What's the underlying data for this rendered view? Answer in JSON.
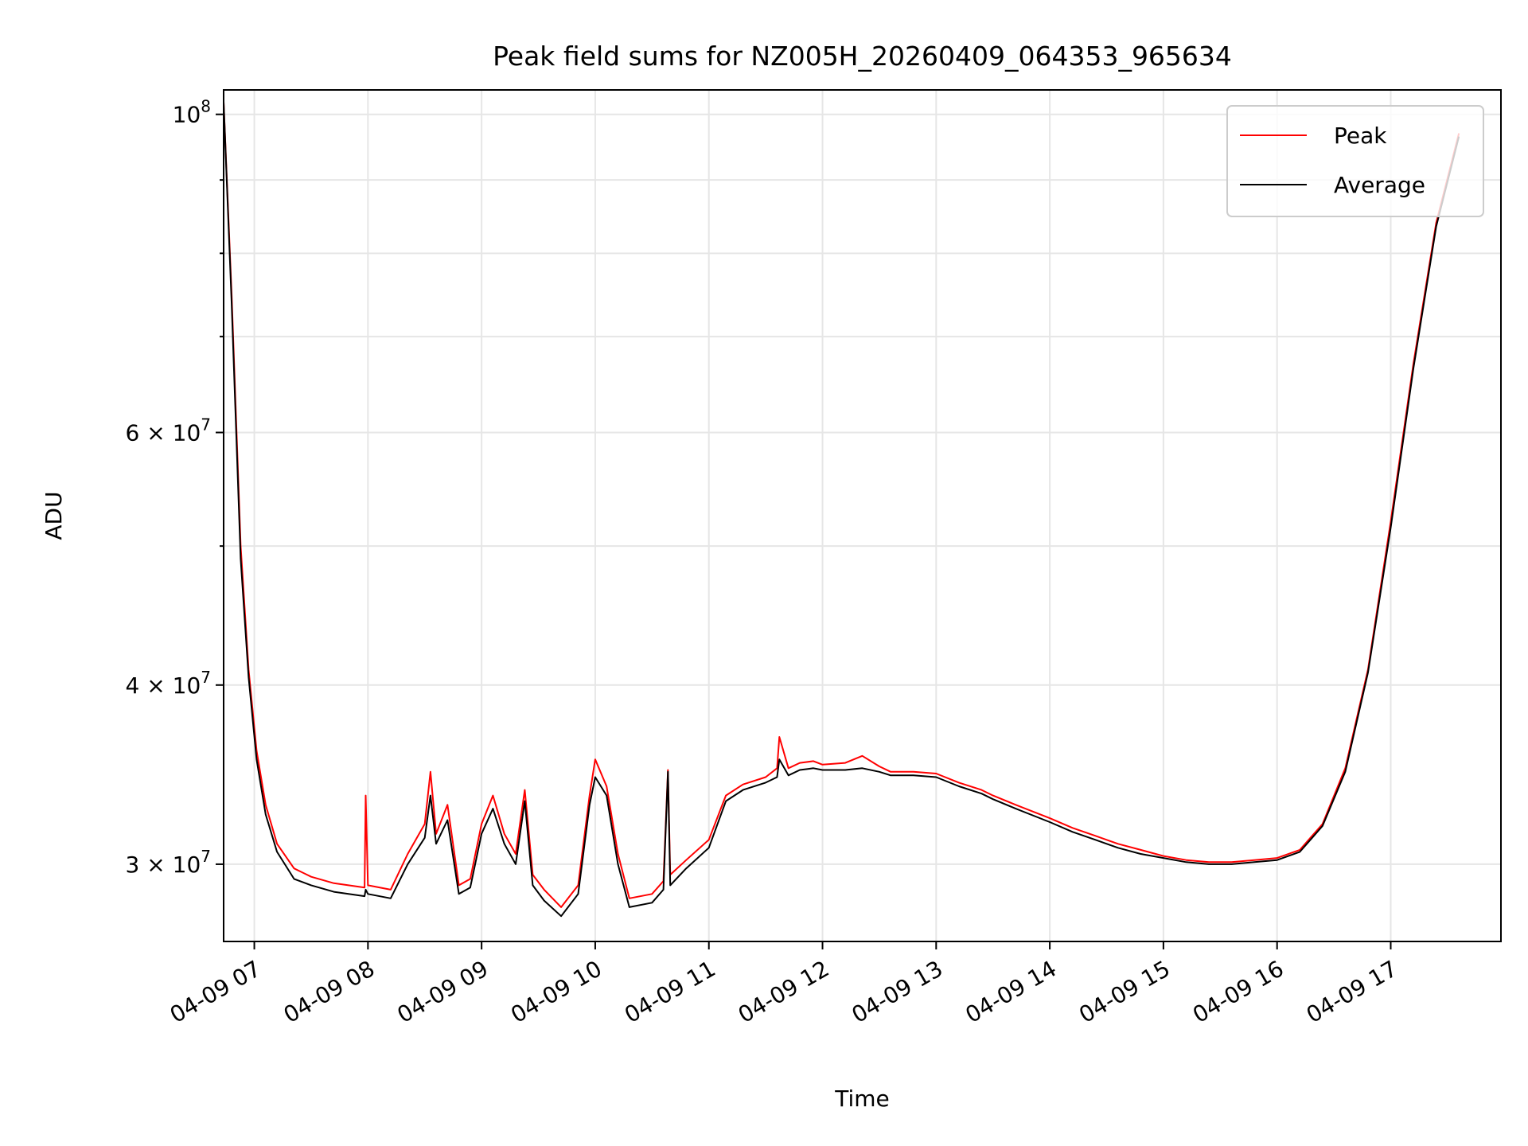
{
  "chart_data": {
    "type": "line",
    "title": "Peak field sums for NZ005H_20260409_064353_965634",
    "xlabel": "Time",
    "ylabel": "ADU",
    "yscale": "log",
    "xlim_hours": [
      6.73,
      17.97
    ],
    "ylim": [
      26500000,
      104000000
    ],
    "grid": true,
    "legend_position": "top-right",
    "x_ticks": [
      {
        "label": "04-09 07",
        "value": 7
      },
      {
        "label": "04-09 08",
        "value": 8
      },
      {
        "label": "04-09 09",
        "value": 9
      },
      {
        "label": "04-09 10",
        "value": 10
      },
      {
        "label": "04-09 11",
        "value": 11
      },
      {
        "label": "04-09 12",
        "value": 12
      },
      {
        "label": "04-09 13",
        "value": 13
      },
      {
        "label": "04-09 14",
        "value": 14
      },
      {
        "label": "04-09 15",
        "value": 15
      },
      {
        "label": "04-09 16",
        "value": 16
      },
      {
        "label": "04-09 17",
        "value": 17
      }
    ],
    "y_ticks": [
      {
        "mantissa": "",
        "exponent": "8",
        "value": 100000000
      },
      {
        "mantissa": "6",
        "exponent": "7",
        "value": 60000000
      },
      {
        "mantissa": "4",
        "exponent": "7",
        "value": 40000000
      },
      {
        "mantissa": "3",
        "exponent": "7",
        "value": 30000000
      }
    ],
    "y_minor_ticks": [
      90000000,
      80000000,
      70000000,
      50000000
    ],
    "series": [
      {
        "name": "Peak",
        "color": "#ff0000",
        "points": [
          [
            6.73,
            102000000
          ],
          [
            6.8,
            75000000
          ],
          [
            6.88,
            50000000
          ],
          [
            6.95,
            41000000
          ],
          [
            7.02,
            36000000
          ],
          [
            7.1,
            33000000
          ],
          [
            7.2,
            31000000
          ],
          [
            7.35,
            29800000
          ],
          [
            7.5,
            29400000
          ],
          [
            7.7,
            29100000
          ],
          [
            7.97,
            28900000
          ],
          [
            7.98,
            33500000
          ],
          [
            8.0,
            29000000
          ],
          [
            8.2,
            28800000
          ],
          [
            8.35,
            30500000
          ],
          [
            8.5,
            32000000
          ],
          [
            8.55,
            34800000
          ],
          [
            8.6,
            31500000
          ],
          [
            8.7,
            33000000
          ],
          [
            8.8,
            29000000
          ],
          [
            8.9,
            29300000
          ],
          [
            9.0,
            32000000
          ],
          [
            9.1,
            33500000
          ],
          [
            9.2,
            31500000
          ],
          [
            9.3,
            30500000
          ],
          [
            9.38,
            33800000
          ],
          [
            9.45,
            29500000
          ],
          [
            9.55,
            28800000
          ],
          [
            9.7,
            28000000
          ],
          [
            9.85,
            29000000
          ],
          [
            9.95,
            33500000
          ],
          [
            10.0,
            35500000
          ],
          [
            10.1,
            34000000
          ],
          [
            10.2,
            30500000
          ],
          [
            10.3,
            28400000
          ],
          [
            10.5,
            28600000
          ],
          [
            10.6,
            29200000
          ],
          [
            10.64,
            34900000
          ],
          [
            10.66,
            29500000
          ],
          [
            10.8,
            30200000
          ],
          [
            11.0,
            31200000
          ],
          [
            11.15,
            33500000
          ],
          [
            11.3,
            34100000
          ],
          [
            11.5,
            34500000
          ],
          [
            11.6,
            35000000
          ],
          [
            11.62,
            36800000
          ],
          [
            11.7,
            35000000
          ],
          [
            11.8,
            35300000
          ],
          [
            11.92,
            35400000
          ],
          [
            12.0,
            35200000
          ],
          [
            12.2,
            35300000
          ],
          [
            12.35,
            35700000
          ],
          [
            12.5,
            35100000
          ],
          [
            12.6,
            34800000
          ],
          [
            12.8,
            34800000
          ],
          [
            13.0,
            34700000
          ],
          [
            13.2,
            34200000
          ],
          [
            13.4,
            33800000
          ],
          [
            13.5,
            33500000
          ],
          [
            13.7,
            33000000
          ],
          [
            14.0,
            32300000
          ],
          [
            14.2,
            31800000
          ],
          [
            14.4,
            31400000
          ],
          [
            14.6,
            31000000
          ],
          [
            14.8,
            30700000
          ],
          [
            15.0,
            30400000
          ],
          [
            15.2,
            30200000
          ],
          [
            15.4,
            30100000
          ],
          [
            15.6,
            30100000
          ],
          [
            15.8,
            30200000
          ],
          [
            16.0,
            30300000
          ],
          [
            16.2,
            30700000
          ],
          [
            16.4,
            32000000
          ],
          [
            16.6,
            35000000
          ],
          [
            16.8,
            41000000
          ],
          [
            17.0,
            52000000
          ],
          [
            17.2,
            67000000
          ],
          [
            17.4,
            84000000
          ],
          [
            17.6,
            97000000
          ]
        ]
      },
      {
        "name": "Average",
        "color": "#000000",
        "points": [
          [
            6.73,
            102000000
          ],
          [
            6.8,
            74000000
          ],
          [
            6.88,
            49000000
          ],
          [
            6.95,
            40500000
          ],
          [
            7.02,
            35500000
          ],
          [
            7.1,
            32500000
          ],
          [
            7.2,
            30600000
          ],
          [
            7.35,
            29300000
          ],
          [
            7.5,
            29000000
          ],
          [
            7.7,
            28700000
          ],
          [
            7.97,
            28500000
          ],
          [
            7.98,
            28800000
          ],
          [
            8.0,
            28600000
          ],
          [
            8.2,
            28400000
          ],
          [
            8.35,
            30000000
          ],
          [
            8.5,
            31300000
          ],
          [
            8.55,
            33500000
          ],
          [
            8.6,
            31000000
          ],
          [
            8.7,
            32200000
          ],
          [
            8.8,
            28600000
          ],
          [
            8.9,
            28900000
          ],
          [
            9.0,
            31500000
          ],
          [
            9.1,
            32800000
          ],
          [
            9.2,
            31000000
          ],
          [
            9.3,
            30000000
          ],
          [
            9.38,
            33200000
          ],
          [
            9.45,
            29000000
          ],
          [
            9.55,
            28300000
          ],
          [
            9.7,
            27600000
          ],
          [
            9.85,
            28600000
          ],
          [
            9.95,
            33000000
          ],
          [
            10.0,
            34500000
          ],
          [
            10.1,
            33500000
          ],
          [
            10.2,
            30000000
          ],
          [
            10.3,
            28000000
          ],
          [
            10.5,
            28200000
          ],
          [
            10.6,
            28800000
          ],
          [
            10.64,
            34800000
          ],
          [
            10.66,
            29000000
          ],
          [
            10.8,
            29800000
          ],
          [
            11.0,
            30800000
          ],
          [
            11.15,
            33200000
          ],
          [
            11.3,
            33800000
          ],
          [
            11.5,
            34200000
          ],
          [
            11.6,
            34500000
          ],
          [
            11.62,
            35500000
          ],
          [
            11.7,
            34600000
          ],
          [
            11.8,
            34900000
          ],
          [
            11.92,
            35000000
          ],
          [
            12.0,
            34900000
          ],
          [
            12.2,
            34900000
          ],
          [
            12.35,
            35000000
          ],
          [
            12.5,
            34800000
          ],
          [
            12.6,
            34600000
          ],
          [
            12.8,
            34600000
          ],
          [
            13.0,
            34500000
          ],
          [
            13.2,
            34000000
          ],
          [
            13.4,
            33600000
          ],
          [
            13.5,
            33300000
          ],
          [
            13.7,
            32800000
          ],
          [
            14.0,
            32100000
          ],
          [
            14.2,
            31600000
          ],
          [
            14.4,
            31200000
          ],
          [
            14.6,
            30800000
          ],
          [
            14.8,
            30500000
          ],
          [
            15.0,
            30300000
          ],
          [
            15.2,
            30100000
          ],
          [
            15.4,
            30000000
          ],
          [
            15.6,
            30000000
          ],
          [
            15.8,
            30100000
          ],
          [
            16.0,
            30200000
          ],
          [
            16.2,
            30600000
          ],
          [
            16.4,
            31900000
          ],
          [
            16.6,
            34800000
          ],
          [
            16.8,
            40800000
          ],
          [
            17.0,
            51500000
          ],
          [
            17.2,
            66500000
          ],
          [
            17.4,
            83500000
          ],
          [
            17.6,
            96500000
          ]
        ]
      }
    ]
  }
}
